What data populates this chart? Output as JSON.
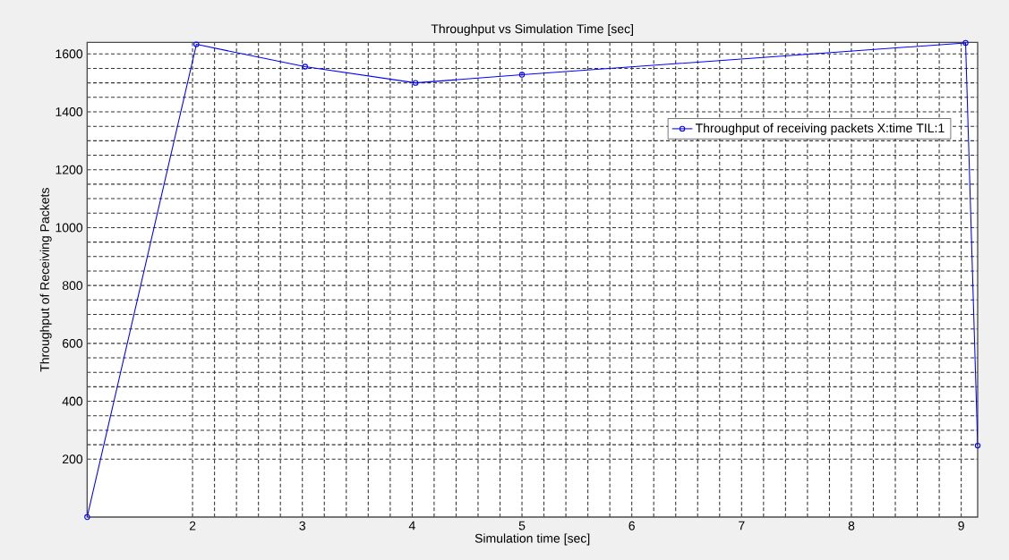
{
  "chart_data": {
    "type": "line",
    "title": "Throughput vs Simulation Time [sec]",
    "xlabel": "Simulation time [sec]",
    "ylabel": "Throughput of Receiving Packets",
    "x": [
      1.04,
      2.035,
      3.025,
      4.03,
      5.0,
      9.04,
      9.15
    ],
    "series": [
      {
        "name": "Throughput of receiving packets X:time TIL:1",
        "color": "#0000ff",
        "values": [
          0,
          1633,
          1556,
          1500,
          1528,
          1638,
          247
        ]
      }
    ],
    "xlim": [
      1.04,
      9.15
    ],
    "ylim": [
      0,
      1640
    ],
    "xticks": [
      2,
      3,
      4,
      5,
      6,
      7,
      8,
      9
    ],
    "yticks": [
      200,
      400,
      600,
      800,
      1000,
      1200,
      1400,
      1600
    ],
    "grid": true,
    "legend": "top right",
    "marker": "circle",
    "line_style": "solid"
  }
}
